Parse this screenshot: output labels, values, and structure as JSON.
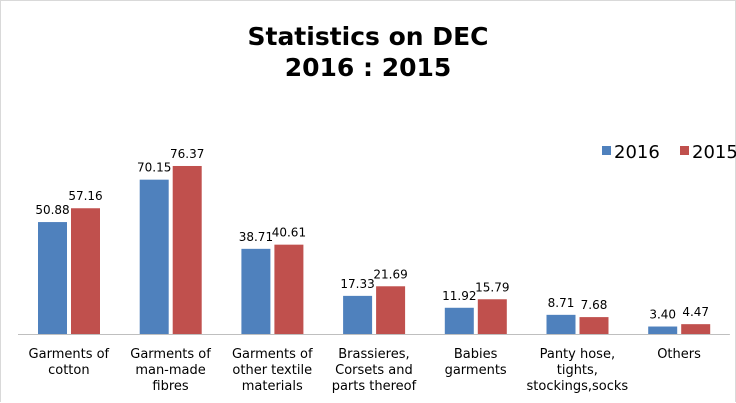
{
  "chart_data": {
    "type": "bar",
    "title": [
      "Statistics on DEC",
      "2016 : 2015"
    ],
    "categories": [
      [
        "Garments of",
        "cotton"
      ],
      [
        "Garments of",
        "man-made",
        "fibres"
      ],
      [
        "Garments of",
        "other textile",
        "materials"
      ],
      [
        "Brassieres,",
        "Corsets and",
        "parts thereof"
      ],
      [
        "Babies",
        "garments"
      ],
      [
        "Panty hose,",
        "tights,",
        "stockings,socks"
      ],
      [
        "Others"
      ]
    ],
    "series": [
      {
        "name": "2016",
        "color": "#4f81bd",
        "values": [
          50.88,
          70.15,
          38.71,
          17.33,
          11.92,
          8.71,
          3.4
        ],
        "labels": [
          "50.88",
          "70.15",
          "38.71",
          "17.33",
          "11.92",
          "8.71",
          "3.40"
        ]
      },
      {
        "name": "2015",
        "color": "#c0504d",
        "values": [
          57.16,
          76.37,
          40.61,
          21.69,
          15.79,
          7.68,
          4.47
        ],
        "labels": [
          "57.16",
          "76.37",
          "40.61",
          "21.69",
          "15.79",
          "7.68",
          "4.47"
        ]
      }
    ],
    "ylim": [
      0,
      100
    ],
    "grid": false,
    "legend_position": "top-right",
    "xlabel": "",
    "ylabel": ""
  }
}
